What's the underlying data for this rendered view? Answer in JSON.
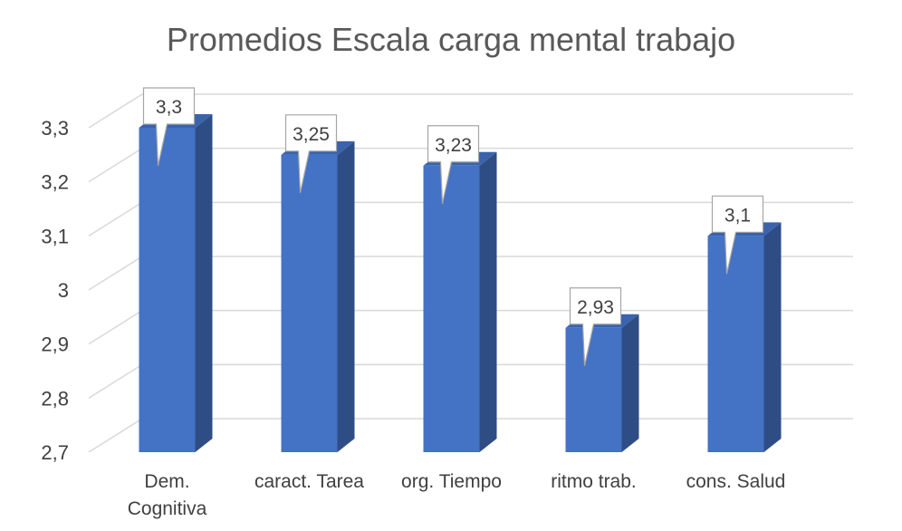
{
  "chart_data": {
    "type": "bar",
    "title": "Promedios Escala carga mental trabajo",
    "categories": [
      [
        "Dem.",
        "Cognitiva"
      ],
      [
        "caract. Tarea"
      ],
      [
        "org. Tiempo"
      ],
      [
        "ritmo trab."
      ],
      [
        "cons. Salud"
      ]
    ],
    "values": [
      3.3,
      3.25,
      3.23,
      2.93,
      3.1
    ],
    "data_labels": [
      "3,3",
      "3,25",
      "3,23",
      "2,93",
      "3,1"
    ],
    "ylim": [
      2.7,
      3.3
    ],
    "yticks": [
      2.7,
      2.8,
      2.9,
      3.0,
      3.1,
      3.2,
      3.3
    ],
    "ytick_labels": [
      "2,7",
      "2,8",
      "2,9",
      "3",
      "3,1",
      "3,2",
      "3,3"
    ],
    "grid": true,
    "style": "3d-column",
    "colors": {
      "front": "#4472C4",
      "side": "#2F4D85",
      "top": "#3A63AC",
      "grid": "#D9D9D9",
      "text": "#404040",
      "title": "#595959"
    }
  }
}
